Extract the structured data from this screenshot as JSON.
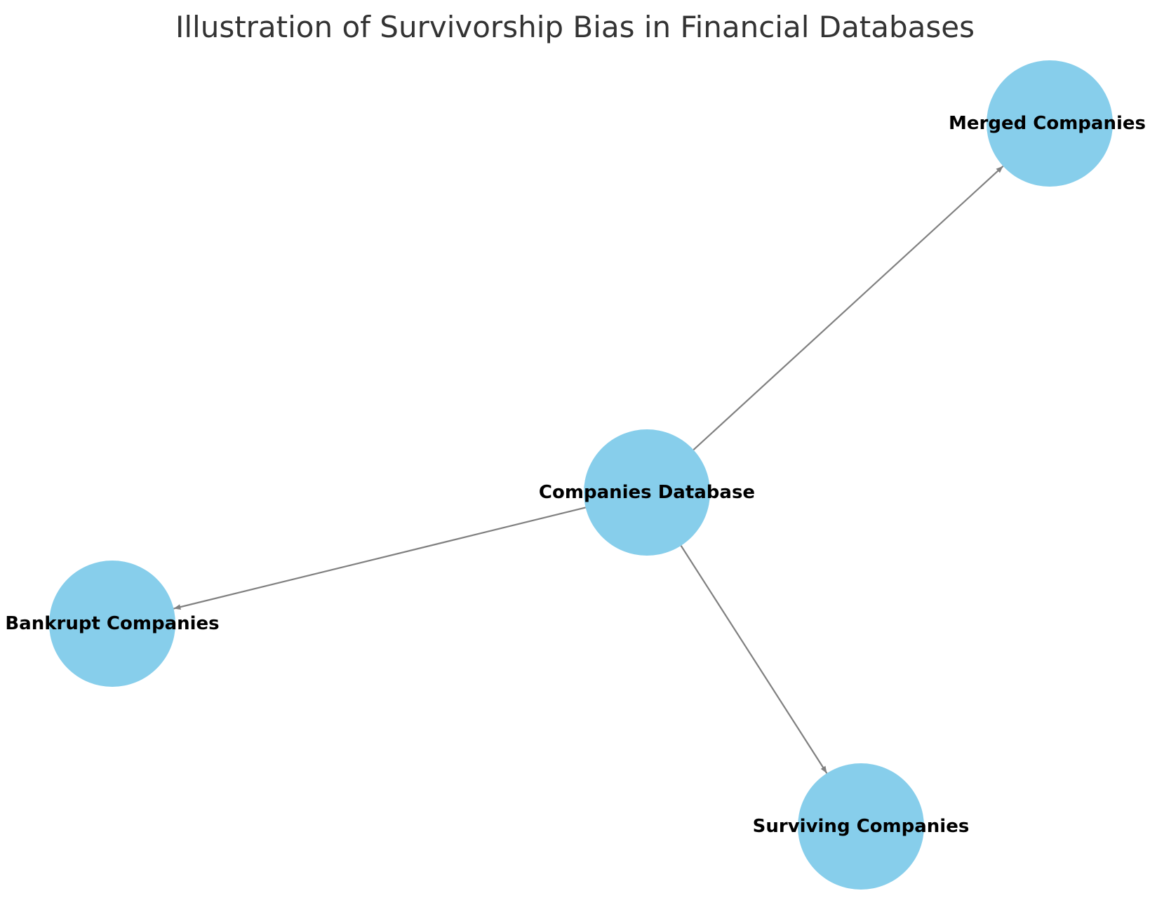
{
  "title": "Illustration of Survivorship Bias in Financial Databases",
  "colors": {
    "node_fill": "#87CEEB",
    "edge": "#808080",
    "label": "#000000",
    "title": "#333333"
  },
  "nodes": [
    {
      "id": "db",
      "label": "Companies Database"
    },
    {
      "id": "merged",
      "label": "Merged Companies"
    },
    {
      "id": "bankrupt",
      "label": "Bankrupt Companies"
    },
    {
      "id": "surviving",
      "label": "Surviving Companies"
    }
  ],
  "edges": [
    {
      "from": "db",
      "to": "merged"
    },
    {
      "from": "db",
      "to": "bankrupt"
    },
    {
      "from": "db",
      "to": "surviving"
    }
  ]
}
